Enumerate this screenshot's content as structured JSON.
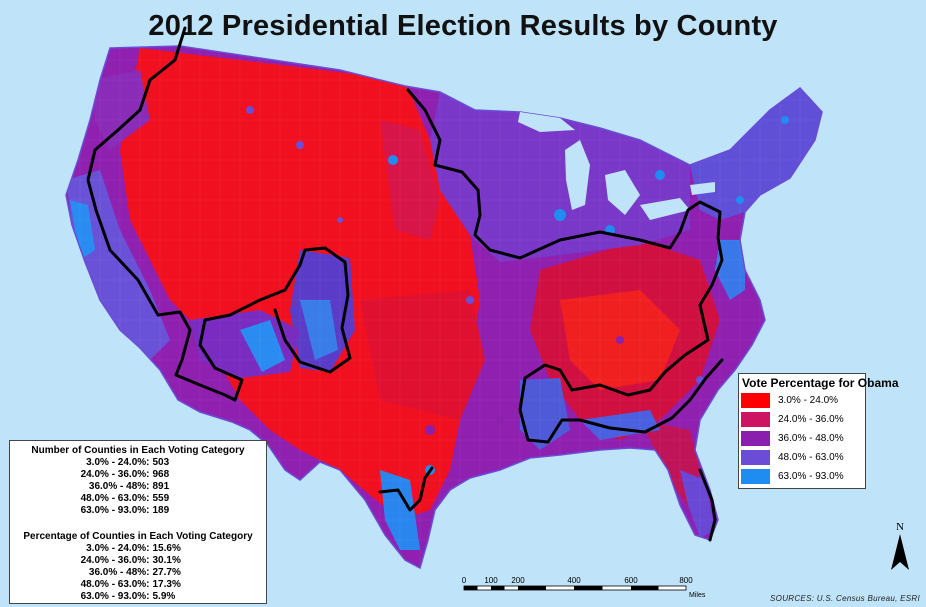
{
  "title": "2012 Presidential Election Results by County",
  "legend": {
    "title": "Vote Percentage for Obama",
    "items": [
      {
        "label": "3.0% - 24.0%",
        "color": "#ff0000"
      },
      {
        "label": "24.0% - 36.0%",
        "color": "#cc1463"
      },
      {
        "label": "36.0% - 48.0%",
        "color": "#8a1fad"
      },
      {
        "label": "48.0% - 63.0%",
        "color": "#6a4cd6"
      },
      {
        "label": "63.0% - 93.0%",
        "color": "#1e8cf0"
      }
    ]
  },
  "stats": {
    "count_heading": "Number of Counties in Each Voting Category",
    "counts": [
      {
        "range": "3.0% - 24.0%:",
        "value": "503"
      },
      {
        "range": "24.0% - 36.0%:",
        "value": "968"
      },
      {
        "range": "36.0% - 48%:",
        "value": "891"
      },
      {
        "range": "48.0% - 63.0%:",
        "value": "559"
      },
      {
        "range": "63.0% - 93.0%:",
        "value": "189"
      }
    ],
    "percent_heading": "Percentage of Counties in Each Voting Category",
    "percents": [
      {
        "range": "3.0% - 24.0%:",
        "value": "15.6%"
      },
      {
        "range": "24.0% - 36.0%:",
        "value": "30.1%"
      },
      {
        "range": "36.0% - 48%:",
        "value": "27.7%"
      },
      {
        "range": "48.0% - 63.0%:",
        "value": "17.3%"
      },
      {
        "range": "63.0% - 93.0%:",
        "value": "5.9%"
      }
    ]
  },
  "scale": {
    "ticks": [
      "0",
      "100",
      "200",
      "400",
      "600",
      "800"
    ],
    "unit": "Miles"
  },
  "north_label": "N",
  "sources": "SOURCES: U.S. Census Bureau, ESRI"
}
